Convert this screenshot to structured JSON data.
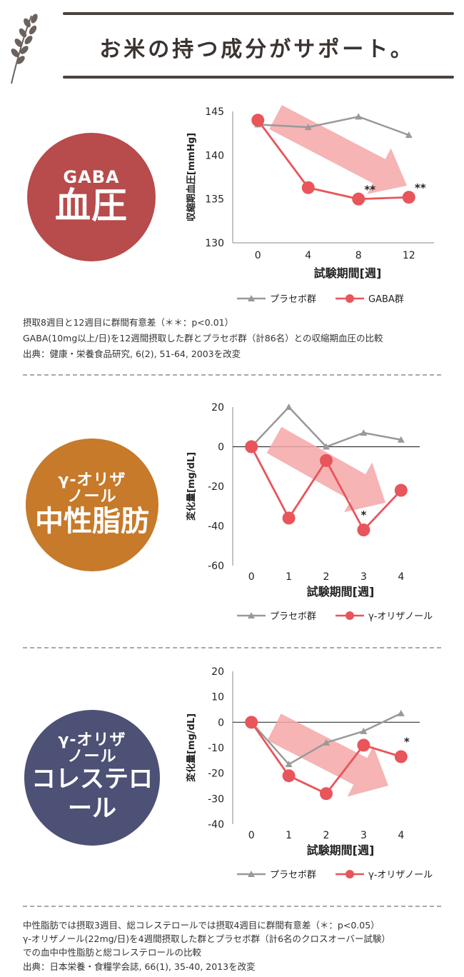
{
  "header": {
    "title": "お米の持つ成分がサポート。"
  },
  "colors": {
    "placebo": "#999999",
    "treatment": "#e8555a",
    "arrow": "#f4a7a7",
    "badge1": "#b84b4b",
    "badge2": "#c67a2a",
    "badge3": "#4d5175"
  },
  "badges": [
    {
      "sub": "GABA",
      "main": "血圧"
    },
    {
      "sub1": "γ-オリザ",
      "sub2": "ノール",
      "main": "中性脂肪"
    },
    {
      "sub1": "γ-オリザ",
      "sub2": "ノール",
      "main": "コレステロール"
    }
  ],
  "chart_data": [
    {
      "type": "line",
      "ylabel": "収縮期血圧[mmHg]",
      "xlabel": "試験期間[週]",
      "x": [
        0,
        4,
        8,
        12
      ],
      "xlim": [
        -2,
        14
      ],
      "ylim": [
        130,
        145
      ],
      "yticks": [
        130,
        135,
        140,
        145
      ],
      "grid": false,
      "legend": "bottom",
      "series": [
        {
          "name": "プラセボ群",
          "values": [
            143.5,
            143.2,
            144.4,
            142.3
          ]
        },
        {
          "name": "GABA群",
          "values": [
            144,
            136.3,
            135,
            135.2
          ]
        }
      ],
      "annotations": [
        {
          "x": 8,
          "series": 1,
          "text": "**"
        },
        {
          "x": 12,
          "series": 1,
          "text": "**"
        }
      ]
    },
    {
      "type": "line",
      "ylabel": "変化量[mg/dL]",
      "xlabel": "試験期間[週]",
      "x": [
        0,
        1,
        2,
        3,
        4
      ],
      "xlim": [
        -0.5,
        4.5
      ],
      "ylim": [
        -60,
        20
      ],
      "yticks": [
        -60,
        -40,
        -20,
        0,
        20
      ],
      "grid": false,
      "legend": "bottom",
      "series": [
        {
          "name": "プラセボ群",
          "values": [
            0,
            20,
            0,
            7,
            3.5
          ]
        },
        {
          "name": "γ-オリザノール",
          "values": [
            0,
            -36,
            -7,
            -42,
            -22
          ]
        }
      ],
      "annotations": [
        {
          "x": 3,
          "series": 1,
          "text": "*"
        }
      ]
    },
    {
      "type": "line",
      "ylabel": "変化量[mg/dL]",
      "xlabel": "試験期間[週]",
      "x": [
        0,
        1,
        2,
        3,
        4
      ],
      "xlim": [
        -0.5,
        4.5
      ],
      "ylim": [
        -40,
        20
      ],
      "yticks": [
        -40,
        -30,
        -20,
        -10,
        0,
        10,
        20
      ],
      "grid": false,
      "legend": "bottom",
      "series": [
        {
          "name": "プラセボ群",
          "values": [
            0,
            -16.5,
            -8,
            -3.5,
            3.5
          ]
        },
        {
          "name": "γ-オリザノール",
          "values": [
            0,
            -21,
            -28,
            -9,
            -13.5
          ]
        }
      ],
      "annotations": [
        {
          "x": 4,
          "series": 1,
          "text": "*"
        }
      ]
    }
  ],
  "notes": {
    "section1": [
      "摂取8週目と12週目に群間有意差（＊＊：p<0.01）",
      "GABA(10mg以上/日)を12週間摂取した群とプラセボ群（計86名）との収縮期血圧の比較",
      "出典：健康・栄養食品研究, 6(2), 51-64, 2003を改変"
    ],
    "section2": [
      "中性脂肪では摂取3週目、総コレステロールでは摂取4週目に群間有意差（＊：p<0.05）",
      "γ-オリザノール(22mg/日)を4週間摂取した群とプラセボ群（計6名のクロスオーバー試験）",
      "での血中中性脂肪と総コレステロールの比較",
      "出典：日本栄養・食糧学会誌, 66(1), 35-40, 2013を改変"
    ]
  }
}
